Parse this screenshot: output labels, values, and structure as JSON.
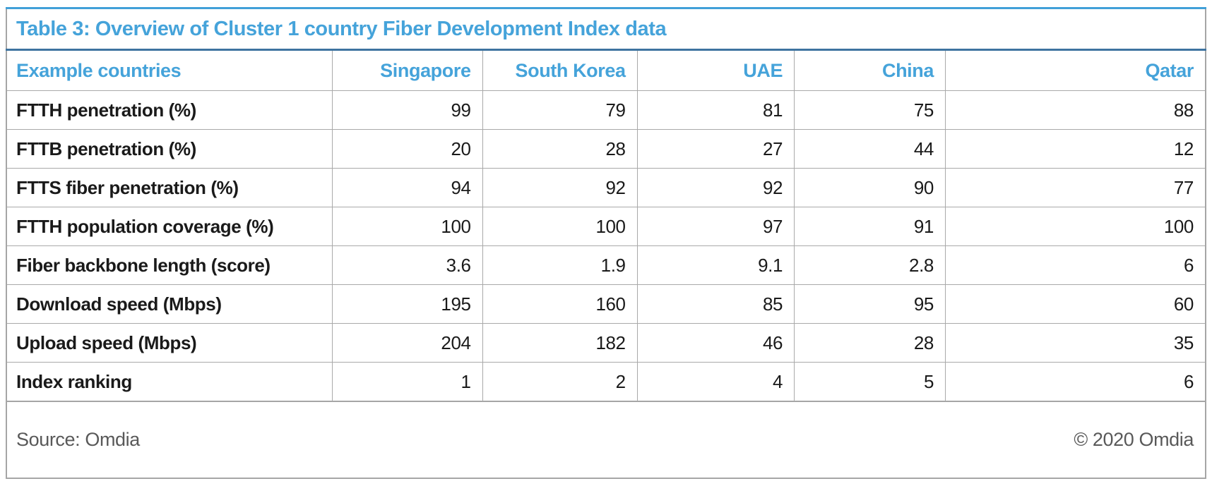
{
  "table": {
    "title": "Table 3: Overview of Cluster 1 country Fiber Development Index data",
    "header": {
      "label": "Example countries",
      "columns": [
        "Singapore",
        "South Korea",
        "UAE",
        "China",
        "Qatar"
      ]
    },
    "rows": [
      {
        "label": "FTTH penetration (%)",
        "values": [
          "99",
          "79",
          "81",
          "75",
          "88"
        ]
      },
      {
        "label": "FTTB penetration (%)",
        "values": [
          "20",
          "28",
          "27",
          "44",
          "12"
        ]
      },
      {
        "label": "FTTS fiber penetration (%)",
        "values": [
          "94",
          "92",
          "92",
          "90",
          "77"
        ]
      },
      {
        "label": "FTTH population coverage (%)",
        "values": [
          "100",
          "100",
          "97",
          "91",
          "100"
        ]
      },
      {
        "label": "Fiber backbone length (score)",
        "values": [
          "3.6",
          "1.9",
          "9.1",
          "2.8",
          "6"
        ]
      },
      {
        "label": "Download speed (Mbps)",
        "values": [
          "195",
          "160",
          "85",
          "95",
          "60"
        ]
      },
      {
        "label": "Upload speed (Mbps)",
        "values": [
          "204",
          "182",
          "46",
          "28",
          "35"
        ]
      },
      {
        "label": "Index ranking",
        "values": [
          "1",
          "2",
          "4",
          "5",
          "6"
        ]
      }
    ],
    "footer": {
      "source": "Source: Omdia",
      "copyright": "© 2020 Omdia"
    },
    "colors": {
      "accent_blue": "#45a3da",
      "title_underline_blue": "#3f74a0",
      "top_border_blue": "#41a0d8",
      "grid_gray": "#a9a9a9",
      "footer_text_gray": "#595959",
      "body_text": "#1a1a1a"
    }
  },
  "chart_data": {
    "type": "table",
    "title": "Table 3: Overview of Cluster 1 country Fiber Development Index data",
    "row_header_label": "Example countries",
    "columns": [
      "Singapore",
      "South Korea",
      "UAE",
      "China",
      "Qatar"
    ],
    "rows": [
      {
        "metric": "FTTH penetration (%)",
        "values": [
          99,
          79,
          81,
          75,
          88
        ]
      },
      {
        "metric": "FTTB penetration (%)",
        "values": [
          20,
          28,
          27,
          44,
          12
        ]
      },
      {
        "metric": "FTTS fiber penetration (%)",
        "values": [
          94,
          92,
          92,
          90,
          77
        ]
      },
      {
        "metric": "FTTH population coverage (%)",
        "values": [
          100,
          100,
          97,
          91,
          100
        ]
      },
      {
        "metric": "Fiber backbone length (score)",
        "values": [
          3.6,
          1.9,
          9.1,
          2.8,
          6
        ]
      },
      {
        "metric": "Download speed (Mbps)",
        "values": [
          195,
          160,
          85,
          95,
          60
        ]
      },
      {
        "metric": "Upload speed (Mbps)",
        "values": [
          204,
          182,
          46,
          28,
          35
        ]
      },
      {
        "metric": "Index ranking",
        "values": [
          1,
          2,
          4,
          5,
          6
        ]
      }
    ],
    "source": "Source: Omdia",
    "copyright": "© 2020 Omdia",
    "layout_hints": {
      "value_alignment": "right",
      "header_color": "#45a3da",
      "grid": "on"
    }
  }
}
